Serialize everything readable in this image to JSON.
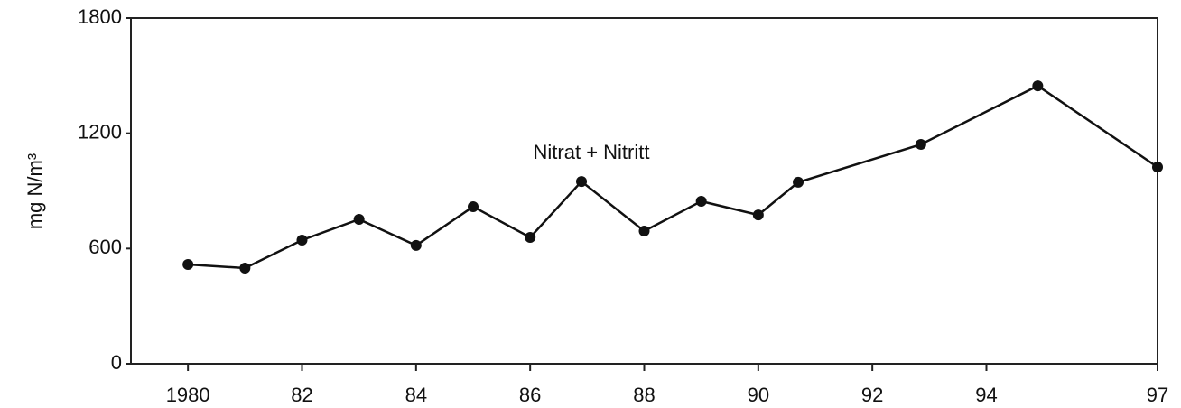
{
  "chart_data": {
    "type": "line",
    "y_label": "mg N/m³",
    "annotation": "Nitrat + Nitritt",
    "x": [
      1980,
      1981,
      1982,
      1983,
      1984,
      1985,
      1986,
      1986.9,
      1988,
      1989,
      1990,
      1990.7,
      1992.85,
      1994.9,
      1997
    ],
    "series": [
      {
        "name": "Nitrat + Nitritt",
        "color": "#111111",
        "values": [
          517,
          498,
          644,
          752,
          616,
          818,
          658,
          949,
          691,
          846,
          775,
          945,
          1142,
          1447,
          1024
        ]
      }
    ],
    "xlim": [
      1979,
      1997
    ],
    "xticks": [
      1980,
      {
        "value": 1982,
        "label": "82"
      },
      {
        "value": 1984,
        "label": "84"
      },
      {
        "value": 1986,
        "label": "86"
      },
      {
        "value": 1988,
        "label": "88"
      },
      {
        "value": 1990,
        "label": "90"
      },
      {
        "value": 1992,
        "label": "92"
      },
      {
        "value": 1994,
        "label": "94"
      },
      {
        "value": 1997,
        "label": "97"
      }
    ],
    "ylim": [
      0,
      1800
    ],
    "yticks": [
      0,
      600,
      1200,
      1800
    ],
    "grid": false
  }
}
